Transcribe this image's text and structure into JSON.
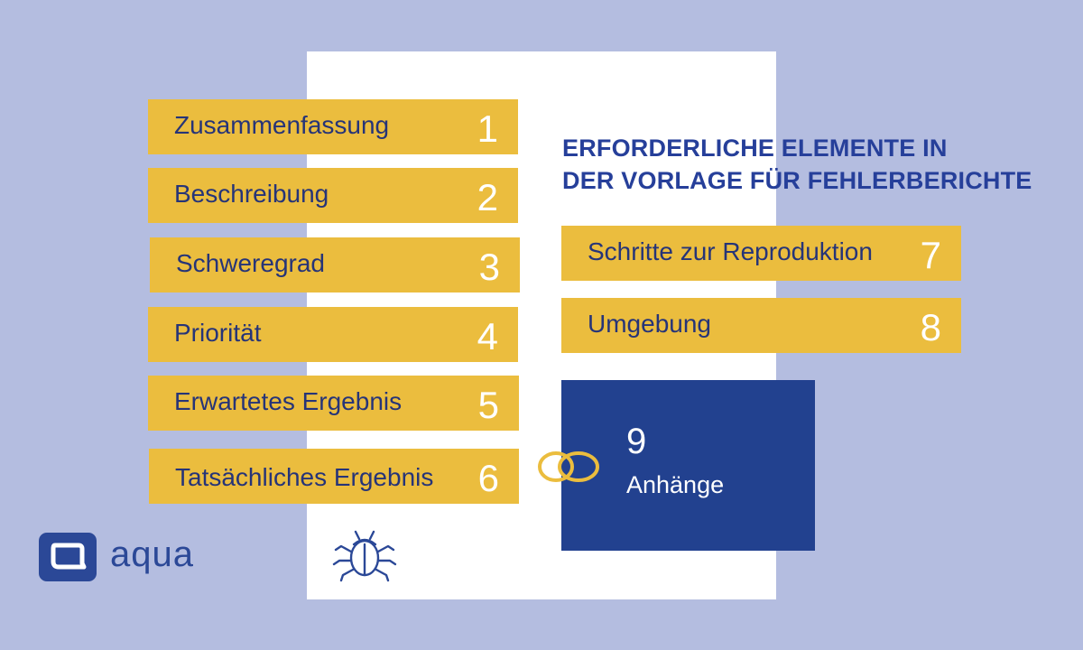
{
  "heading": {
    "line1": "ERFORDERLICHE  ELEMENTE IN",
    "line2": "DER VORLAGE FÜR FEHLERBERICHTE"
  },
  "items": [
    {
      "label": "Zusammenfassung",
      "number": "1"
    },
    {
      "label": "Beschreibung",
      "number": "2"
    },
    {
      "label": "Schweregrad",
      "number": "3"
    },
    {
      "label": "Priorität",
      "number": "4"
    },
    {
      "label": "Erwartetes Ergebnis",
      "number": "5"
    },
    {
      "label": "Tatsächliches Ergebnis",
      "number": "6"
    },
    {
      "label": "Schritte zur Reproduktion",
      "number": "7"
    },
    {
      "label": "Umgebung",
      "number": "8"
    },
    {
      "label": "Anhänge",
      "number": "9"
    }
  ],
  "logo": {
    "text": "aqua",
    "icon": "aqua-logo-icon"
  },
  "icons": {
    "bug": "bug-icon",
    "attachment": "linked-rings-icon"
  },
  "colors": {
    "background": "#b4bde0",
    "card": "#ffffff",
    "bar": "#ebbd3e",
    "heading": "#263f9a",
    "attachment_box": "#22418f"
  }
}
